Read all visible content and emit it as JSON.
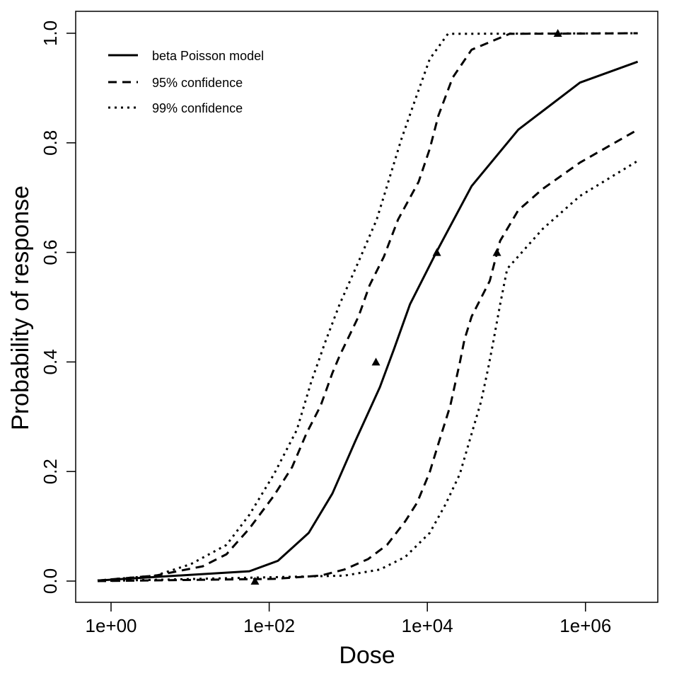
{
  "chart_data": {
    "type": "line",
    "title": "",
    "xlabel": "Dose",
    "ylabel": "Probability of response",
    "x_scale": "log10",
    "xlim_log10": [
      -0.3,
      6.9
    ],
    "ylim": [
      -0.04,
      1.04
    ],
    "x_ticks": [
      {
        "log10": 0,
        "label": "1e+00"
      },
      {
        "log10": 2,
        "label": "1e+02"
      },
      {
        "log10": 4,
        "label": "1e+04"
      },
      {
        "log10": 6,
        "label": "1e+06"
      }
    ],
    "y_ticks": [
      {
        "value": 0.0,
        "label": "0.0"
      },
      {
        "value": 0.2,
        "label": "0.2"
      },
      {
        "value": 0.4,
        "label": "0.4"
      },
      {
        "value": 0.6,
        "label": "0.6"
      },
      {
        "value": 0.8,
        "label": "0.8"
      },
      {
        "value": 1.0,
        "label": "1.0"
      }
    ],
    "grid": false,
    "legend_position": "top-left",
    "series": [
      {
        "name": "beta Poisson model",
        "style": "solid",
        "points_log10dose_prob": [
          [
            -0.17,
            0.001
          ],
          [
            1.75,
            0.018
          ],
          [
            2.11,
            0.037
          ],
          [
            2.5,
            0.088
          ],
          [
            2.8,
            0.16
          ],
          [
            3.09,
            0.256
          ],
          [
            3.4,
            0.354
          ],
          [
            3.58,
            0.424
          ],
          [
            3.78,
            0.505
          ],
          [
            4.12,
            0.602
          ],
          [
            4.56,
            0.721
          ],
          [
            5.15,
            0.824
          ],
          [
            5.93,
            0.91
          ],
          [
            6.66,
            0.948
          ]
        ]
      },
      {
        "name": "95% confidence",
        "style": "dashed",
        "bound": "upper",
        "points_log10dose_prob": [
          [
            -0.17,
            0.001
          ],
          [
            0.56,
            0.01
          ],
          [
            1.16,
            0.027
          ],
          [
            1.46,
            0.049
          ],
          [
            1.75,
            0.096
          ],
          [
            2.06,
            0.156
          ],
          [
            2.29,
            0.208
          ],
          [
            2.47,
            0.269
          ],
          [
            2.65,
            0.32
          ],
          [
            2.8,
            0.38
          ],
          [
            2.89,
            0.411
          ],
          [
            3.13,
            0.483
          ],
          [
            3.27,
            0.54
          ],
          [
            3.45,
            0.592
          ],
          [
            3.63,
            0.66
          ],
          [
            3.89,
            0.729
          ],
          [
            4.03,
            0.789
          ],
          [
            4.14,
            0.85
          ],
          [
            4.32,
            0.919
          ],
          [
            4.56,
            0.97
          ],
          [
            5.04,
            0.999
          ],
          [
            6.66,
            1.0
          ]
        ]
      },
      {
        "name": "95% confidence",
        "style": "dashed",
        "bound": "lower",
        "points_log10dose_prob": [
          [
            -0.17,
            0.0
          ],
          [
            2.06,
            0.004
          ],
          [
            2.65,
            0.01
          ],
          [
            2.95,
            0.021
          ],
          [
            3.25,
            0.04
          ],
          [
            3.49,
            0.066
          ],
          [
            3.72,
            0.109
          ],
          [
            3.87,
            0.143
          ],
          [
            4.03,
            0.199
          ],
          [
            4.14,
            0.251
          ],
          [
            4.29,
            0.32
          ],
          [
            4.41,
            0.398
          ],
          [
            4.47,
            0.441
          ],
          [
            4.56,
            0.483
          ],
          [
            4.79,
            0.548
          ],
          [
            4.92,
            0.621
          ],
          [
            5.15,
            0.677
          ],
          [
            5.46,
            0.716
          ],
          [
            5.93,
            0.764
          ],
          [
            6.66,
            0.824
          ]
        ]
      },
      {
        "name": "99% confidence",
        "style": "dotted",
        "bound": "upper",
        "points_log10dose_prob": [
          [
            -0.17,
            0.001
          ],
          [
            0.56,
            0.01
          ],
          [
            1.01,
            0.031
          ],
          [
            1.46,
            0.066
          ],
          [
            1.75,
            0.121
          ],
          [
            2.06,
            0.195
          ],
          [
            2.35,
            0.276
          ],
          [
            2.53,
            0.363
          ],
          [
            2.71,
            0.437
          ],
          [
            2.89,
            0.505
          ],
          [
            3.13,
            0.583
          ],
          [
            3.36,
            0.66
          ],
          [
            3.49,
            0.721
          ],
          [
            3.67,
            0.806
          ],
          [
            3.85,
            0.88
          ],
          [
            4.03,
            0.953
          ],
          [
            4.26,
            0.999
          ],
          [
            6.66,
            1.0
          ]
        ]
      },
      {
        "name": "99% confidence",
        "style": "dotted",
        "bound": "lower",
        "points_log10dose_prob": [
          [
            -0.17,
            0.0
          ],
          [
            2.95,
            0.01
          ],
          [
            3.4,
            0.021
          ],
          [
            3.72,
            0.044
          ],
          [
            4.03,
            0.088
          ],
          [
            4.23,
            0.14
          ],
          [
            4.41,
            0.195
          ],
          [
            4.56,
            0.269
          ],
          [
            4.68,
            0.328
          ],
          [
            4.77,
            0.389
          ],
          [
            4.83,
            0.434
          ],
          [
            4.92,
            0.505
          ],
          [
            5.01,
            0.57
          ],
          [
            5.46,
            0.643
          ],
          [
            5.93,
            0.703
          ],
          [
            6.66,
            0.767
          ]
        ]
      }
    ],
    "observed_points": {
      "marker": "triangle",
      "points_log10dose_prob": [
        [
          1.82,
          0.0
        ],
        [
          3.35,
          0.4
        ],
        [
          4.12,
          0.6
        ],
        [
          4.88,
          0.6
        ],
        [
          5.65,
          1.0
        ]
      ]
    },
    "legend": [
      {
        "label": "beta Poisson model",
        "style": "solid"
      },
      {
        "label": "95% confidence",
        "style": "dashed"
      },
      {
        "label": "99% confidence",
        "style": "dotted"
      }
    ]
  }
}
